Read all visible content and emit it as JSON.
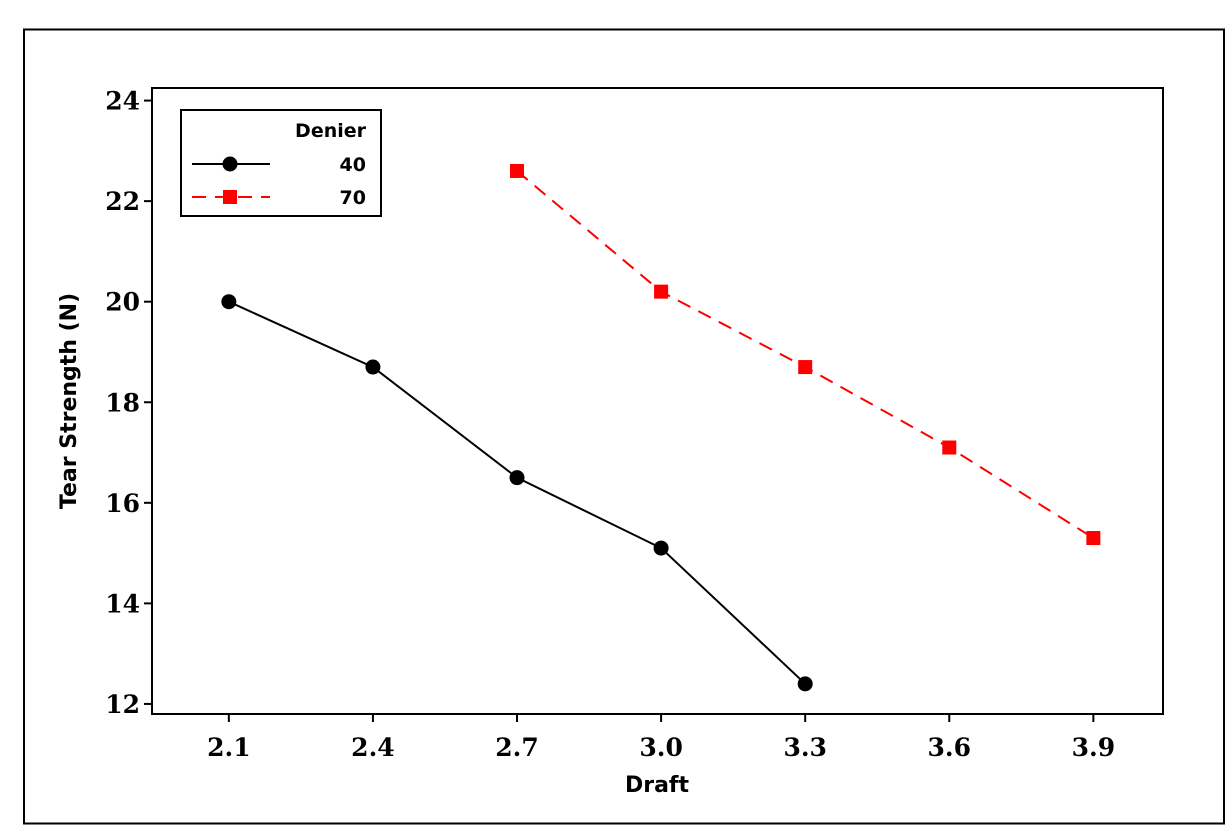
{
  "chart_data": {
    "type": "line",
    "xlabel": "Draft",
    "ylabel": "Tear Strength (N)",
    "x_ticks": [
      "2.1",
      "2.4",
      "2.7",
      "3.0",
      "3.3",
      "3.6",
      "3.9"
    ],
    "y_ticks": [
      "12",
      "14",
      "16",
      "18",
      "20",
      "22",
      "24"
    ],
    "xlim": [
      1.94,
      4.045
    ],
    "ylim": [
      11.8,
      24.25
    ],
    "grid": false,
    "legend": {
      "title": "Denier",
      "placement": "top-left"
    },
    "series": [
      {
        "name": "40",
        "color": "#000000",
        "marker": "circle",
        "line_style": "solid",
        "points": [
          {
            "x": 2.1,
            "y": 20.0
          },
          {
            "x": 2.4,
            "y": 18.7
          },
          {
            "x": 2.7,
            "y": 16.5
          },
          {
            "x": 3.0,
            "y": 15.1
          },
          {
            "x": 3.3,
            "y": 12.4
          }
        ]
      },
      {
        "name": "70",
        "color": "#ff0000",
        "marker": "square",
        "line_style": "dashed",
        "points": [
          {
            "x": 2.7,
            "y": 22.6
          },
          {
            "x": 3.0,
            "y": 20.2
          },
          {
            "x": 3.3,
            "y": 18.7
          },
          {
            "x": 3.6,
            "y": 17.1
          },
          {
            "x": 3.9,
            "y": 15.3
          }
        ]
      }
    ]
  }
}
